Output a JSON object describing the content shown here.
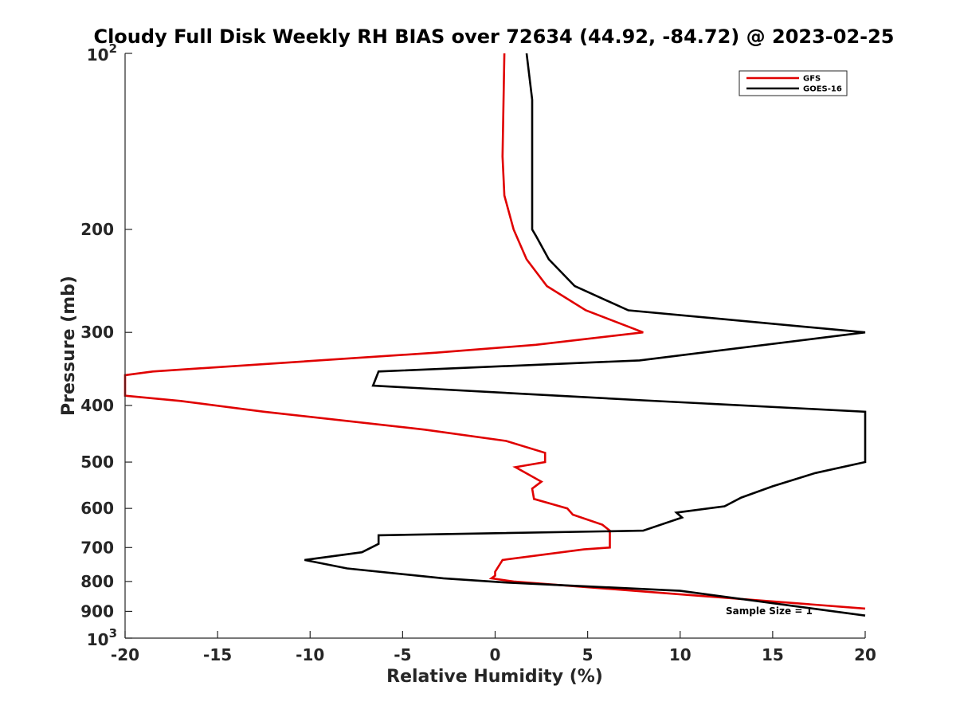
{
  "chart_data": {
    "type": "line",
    "title": "Cloudy Full Disk Weekly RH BIAS over 72634 (44.92, -84.72) @ 2023-02-25",
    "xlabel": "Relative Humidity (%)",
    "ylabel": "Pressure (mb)",
    "xlim": [
      -20,
      20
    ],
    "ylim": [
      100,
      1000
    ],
    "yscale": "log",
    "yreversed": true,
    "grid": false,
    "legend_position": "top-right",
    "x_ticks": [
      -20,
      -15,
      -10,
      -5,
      0,
      5,
      10,
      15,
      20
    ],
    "x_tick_labels": [
      "-20",
      "-15",
      "-10",
      "-5",
      "0",
      "5",
      "10",
      "15",
      "20"
    ],
    "y_ticks": [
      100,
      200,
      300,
      400,
      500,
      600,
      700,
      800,
      900,
      1000
    ],
    "y_tick_labels": [
      {
        "base": "10",
        "exp": "2"
      },
      {
        "base": "200",
        "exp": ""
      },
      {
        "base": "300",
        "exp": ""
      },
      {
        "base": "400",
        "exp": ""
      },
      {
        "base": "500",
        "exp": ""
      },
      {
        "base": "600",
        "exp": ""
      },
      {
        "base": "700",
        "exp": ""
      },
      {
        "base": "800",
        "exp": ""
      },
      {
        "base": "900",
        "exp": ""
      },
      {
        "base": "10",
        "exp": "3"
      }
    ],
    "annotation": "Sample Size = 1",
    "series": [
      {
        "name": "GFS",
        "color": "#e00000",
        "points": [
          [
            0.5,
            100
          ],
          [
            0.4,
            150
          ],
          [
            0.5,
            175
          ],
          [
            1.0,
            200
          ],
          [
            1.7,
            225
          ],
          [
            2.8,
            250
          ],
          [
            4.9,
            275
          ],
          [
            8.0,
            300
          ],
          [
            2.2,
            315
          ],
          [
            -3.2,
            325
          ],
          [
            -18.5,
            350
          ],
          [
            -20.0,
            355
          ],
          [
            -20.0,
            385
          ],
          [
            -17.0,
            393
          ],
          [
            -12.5,
            410
          ],
          [
            -3.8,
            440
          ],
          [
            0.6,
            460
          ],
          [
            2.7,
            482
          ],
          [
            2.7,
            500
          ],
          [
            1.1,
            510
          ],
          [
            2.5,
            540
          ],
          [
            2.0,
            555
          ],
          [
            2.1,
            578
          ],
          [
            3.9,
            600
          ],
          [
            4.2,
            615
          ],
          [
            5.8,
            640
          ],
          [
            6.2,
            655
          ],
          [
            6.2,
            700
          ],
          [
            4.8,
            705
          ],
          [
            0.4,
            735
          ],
          [
            0.0,
            770
          ],
          [
            0.0,
            782
          ],
          [
            -0.2,
            790
          ],
          [
            1.0,
            800
          ],
          [
            20.0,
            890
          ]
        ]
      },
      {
        "name": "GOES-16",
        "color": "#000000",
        "points": [
          [
            1.7,
            100
          ],
          [
            2.0,
            120
          ],
          [
            2.0,
            200
          ],
          [
            2.2,
            205
          ],
          [
            2.9,
            225
          ],
          [
            4.3,
            250
          ],
          [
            7.2,
            275
          ],
          [
            20.0,
            300
          ],
          [
            7.8,
            335
          ],
          [
            -6.3,
            350
          ],
          [
            -6.6,
            370
          ],
          [
            8.0,
            392
          ],
          [
            20.0,
            410
          ],
          [
            20.0,
            500
          ],
          [
            17.3,
            522
          ],
          [
            15.0,
            550
          ],
          [
            13.3,
            575
          ],
          [
            12.4,
            595
          ],
          [
            9.8,
            610
          ],
          [
            10.1,
            622
          ],
          [
            8.0,
            655
          ],
          [
            -6.3,
            667
          ],
          [
            -6.3,
            690
          ],
          [
            -7.2,
            713
          ],
          [
            -10.3,
            735
          ],
          [
            -8.0,
            760
          ],
          [
            -2.8,
            790
          ],
          [
            0.5,
            803
          ],
          [
            10.0,
            830
          ],
          [
            20.0,
            915
          ]
        ]
      }
    ]
  }
}
